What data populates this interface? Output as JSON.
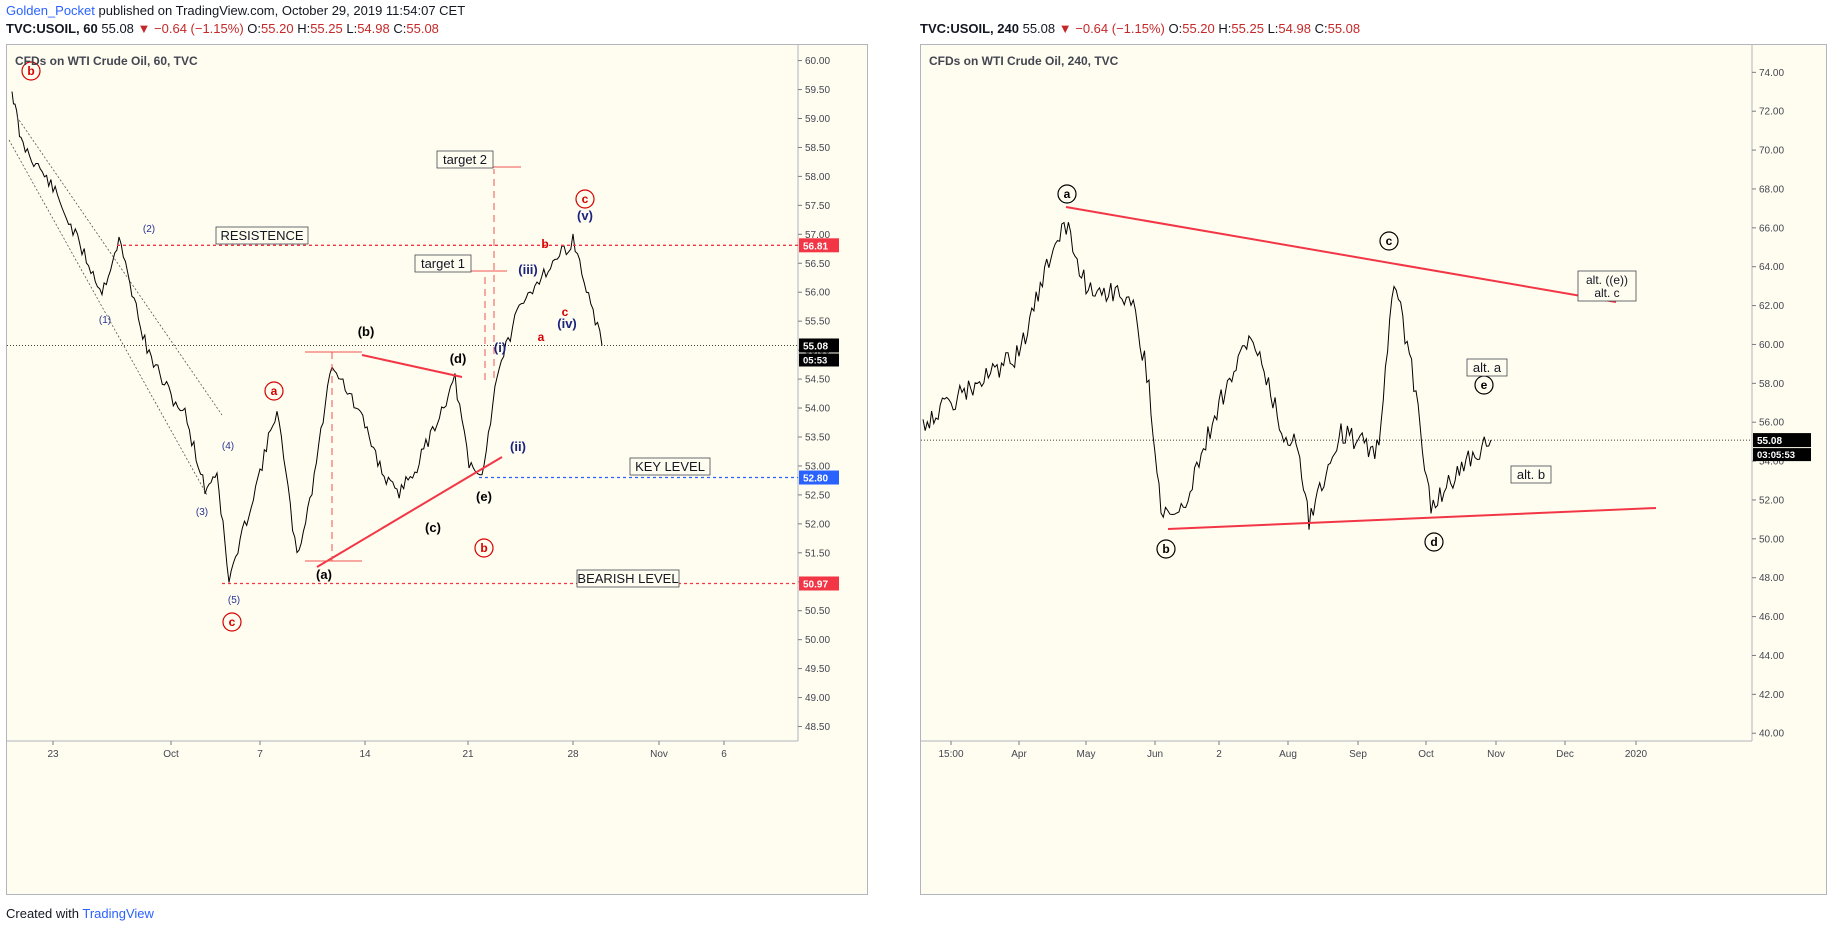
{
  "header": {
    "author": "Golden_Pocket",
    "published_text": "published on TradingView.com, October 29, 2019 11:54:07 CET",
    "symbol_line_left": "TVC:USOIL, 60",
    "symbol_line_right": "TVC:USOIL, 240",
    "last": "55.08",
    "change": "▼ −0.64 (−1.15%)",
    "o_label": "O:",
    "o": "55.20",
    "h_label": "H:",
    "h": "55.25",
    "l_label": "L:",
    "l": "54.98",
    "c_label": "C:",
    "c": "55.08"
  },
  "footer": {
    "created_with": "Created with",
    "brand": "TradingView"
  },
  "colors": {
    "down": "#c62828",
    "line_red": "#f23645",
    "level_blue": "#2962ff",
    "label_red": "#d50000",
    "label_blue": "#1a237e",
    "bg": "#fffcf0"
  },
  "chart_data": [
    {
      "type": "line",
      "title": "CFDs on WTI Crude Oil, 60, TVC",
      "ylim": [
        48.25,
        60.2
      ],
      "yticks": [
        "60.00",
        "59.50",
        "59.00",
        "58.50",
        "58.00",
        "57.50",
        "57.00",
        "56.50",
        "56.00",
        "55.50",
        "55.00",
        "54.50",
        "54.00",
        "53.50",
        "53.00",
        "52.50",
        "52.00",
        "51.50",
        "51.00",
        "50.50",
        "50.00",
        "49.50",
        "49.00",
        "48.50"
      ],
      "xticks": [
        "23",
        "Oct",
        "7",
        "14",
        "21",
        "28",
        "Nov",
        "6"
      ],
      "series": [
        {
          "x": [
            "Sep 17",
            "Sep 19",
            "Sep 23",
            "Sep 25",
            "Sep 26",
            "Sep 27",
            "Sep 30",
            "Oct 1",
            "Oct 2",
            "Oct 3",
            "Oct 4",
            "Oct 7",
            "Oct 8",
            "Oct 9",
            "Oct 10",
            "Oct 11",
            "Oct 14",
            "Oct 15",
            "Oct 16",
            "Oct 17",
            "Oct 18",
            "Oct 21",
            "Oct 22",
            "Oct 23",
            "Oct 24",
            "Oct 25",
            "Oct 28",
            "Oct 29"
          ],
          "values": [
            59.5,
            58.6,
            57.8,
            56.0,
            56.9,
            55.0,
            54.2,
            53.9,
            52.6,
            52.9,
            51.0,
            52.9,
            54.0,
            51.4,
            52.6,
            54.8,
            53.7,
            52.9,
            52.5,
            53.0,
            54.5,
            53.0,
            52.8,
            54.6,
            55.6,
            56.2,
            56.9,
            55.08
          ]
        }
      ],
      "levels": [
        {
          "label": "RESISTENCE",
          "value": 56.81,
          "tag": "56.81"
        },
        {
          "label": "KEY LEVEL",
          "value": 52.8,
          "tag": "52.80"
        },
        {
          "label": "BEARISH LEVEL",
          "value": 50.97,
          "tag": "50.97"
        }
      ],
      "last_tag": "55.08",
      "countdown": "05:53",
      "targets": [
        "target 1",
        "target 2"
      ],
      "wave_labels": [
        "b",
        "c",
        "a",
        "(1)",
        "(2)",
        "(3)",
        "(4)",
        "(5)",
        "(a)",
        "(b)",
        "(c)",
        "(d)",
        "(e)",
        "b",
        "(i)",
        "(ii)",
        "(iii)",
        "(iv)",
        "(v)",
        "a",
        "b",
        "c",
        "c"
      ]
    },
    {
      "type": "line",
      "title": "CFDs on WTI Crude Oil, 240, TVC",
      "ylim": [
        39.6,
        75.2
      ],
      "yticks": [
        "74.00",
        "72.00",
        "70.00",
        "68.00",
        "66.00",
        "64.00",
        "62.00",
        "60.00",
        "58.00",
        "56.00",
        "54.00",
        "52.00",
        "50.00",
        "48.00",
        "46.00",
        "44.00",
        "42.00",
        "40.00"
      ],
      "xticks": [
        "15:00",
        "Apr",
        "May",
        "Jun",
        "2",
        "Aug",
        "Sep",
        "Oct",
        "Nov",
        "Dec",
        "2020"
      ],
      "series": [
        {
          "x": [
            "Mar 1",
            "Mar 15",
            "Apr 1",
            "Apr 12",
            "Apr 23",
            "May 1",
            "May 15",
            "May 29",
            "Jun 5",
            "Jun 12",
            "Jun 26",
            "Jul 10",
            "Jul 24",
            "Aug 1",
            "Aug 7",
            "Aug 20",
            "Sep 1",
            "Sep 10",
            "Sep 16",
            "Sep 24",
            "Oct 3",
            "Oct 15",
            "Oct 29"
          ],
          "values": [
            56.0,
            57.0,
            59.5,
            64.5,
            66.5,
            63.0,
            62.5,
            58.0,
            51.5,
            51.0,
            57.0,
            60.5,
            55.0,
            55.0,
            51.0,
            55.5,
            55.0,
            54.5,
            63.5,
            57.5,
            51.5,
            54.0,
            55.08
          ]
        }
      ],
      "triangle": [
        "a",
        "b",
        "c",
        "d",
        "e"
      ],
      "alt_labels": [
        "alt. ((e))",
        "alt. c",
        "alt. a",
        "alt. b"
      ],
      "last_tag": "55.08",
      "countdown": "03:05:53"
    }
  ]
}
